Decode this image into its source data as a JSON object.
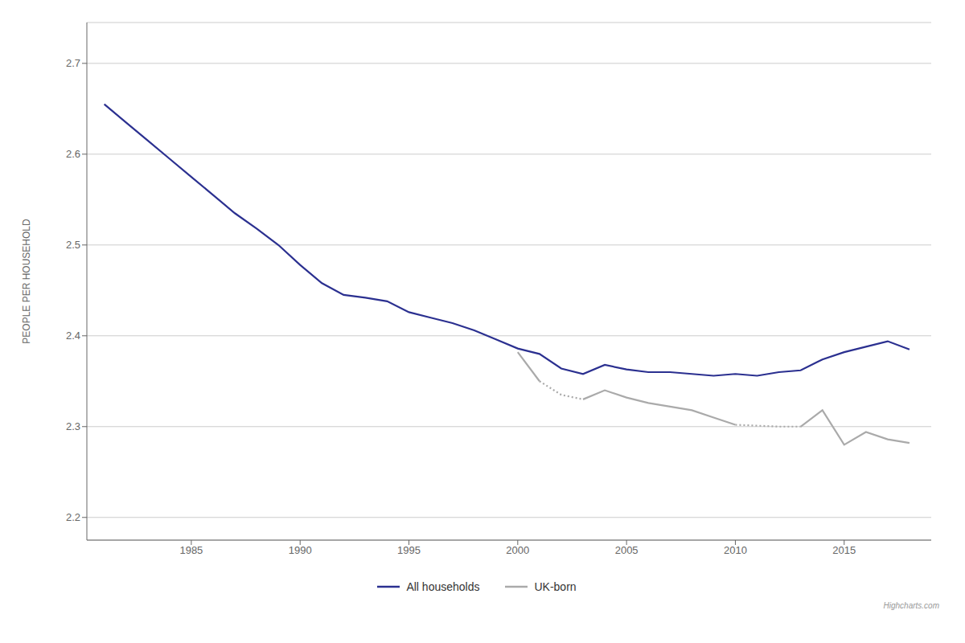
{
  "chart_data": {
    "type": "line",
    "y_label": "PEOPLE PER HOUSEHOLD",
    "annotations": [
      "Highcharts.com"
    ],
    "x": [
      1981,
      1982,
      1983,
      1984,
      1985,
      1986,
      1987,
      1988,
      1989,
      1990,
      1991,
      1992,
      1993,
      1994,
      1995,
      1996,
      1997,
      1998,
      1999,
      2000,
      2001,
      2002,
      2003,
      2004,
      2005,
      2006,
      2007,
      2008,
      2009,
      2010,
      2011,
      2012,
      2013,
      2014,
      2015,
      2016,
      2017,
      2018
    ],
    "series": [
      {
        "name": "All households",
        "color": "#2b3090",
        "line_style": "solid",
        "values": [
          2.655,
          2.635,
          2.615,
          2.595,
          2.575,
          2.555,
          2.535,
          2.518,
          2.5,
          2.478,
          2.458,
          2.445,
          2.442,
          2.438,
          2.426,
          2.42,
          2.414,
          2.406,
          2.396,
          2.386,
          2.38,
          2.364,
          2.358,
          2.368,
          2.363,
          2.36,
          2.36,
          2.358,
          2.356,
          2.358,
          2.356,
          2.36,
          2.362,
          2.374,
          2.382,
          2.388,
          2.394,
          2.385
        ]
      },
      {
        "name": "UK-born",
        "color": "#aaaaaa",
        "line_style": "solid",
        "values": [
          null,
          null,
          null,
          null,
          null,
          null,
          null,
          null,
          null,
          null,
          null,
          null,
          null,
          null,
          null,
          null,
          null,
          null,
          null,
          2.382,
          2.35,
          null,
          null,
          null,
          null,
          null,
          null,
          null,
          null,
          null,
          null,
          null,
          null,
          null,
          null,
          null,
          null,
          null
        ]
      },
      {
        "name": "UK-born",
        "color": "#aaaaaa",
        "line_style": "dotted",
        "values": [
          null,
          null,
          null,
          null,
          null,
          null,
          null,
          null,
          null,
          null,
          null,
          null,
          null,
          null,
          null,
          null,
          null,
          null,
          null,
          null,
          2.35,
          2.335,
          2.33,
          null,
          null,
          null,
          null,
          null,
          null,
          null,
          null,
          null,
          null,
          null,
          null,
          null,
          null,
          null
        ]
      },
      {
        "name": "UK-born",
        "color": "#aaaaaa",
        "line_style": "solid",
        "values": [
          null,
          null,
          null,
          null,
          null,
          null,
          null,
          null,
          null,
          null,
          null,
          null,
          null,
          null,
          null,
          null,
          null,
          null,
          null,
          null,
          null,
          null,
          2.33,
          2.34,
          2.332,
          2.326,
          2.322,
          2.318,
          2.31,
          2.302,
          null,
          null,
          null,
          null,
          null,
          null,
          null,
          null
        ]
      },
      {
        "name": "UK-born",
        "color": "#aaaaaa",
        "line_style": "dotted",
        "values": [
          null,
          null,
          null,
          null,
          null,
          null,
          null,
          null,
          null,
          null,
          null,
          null,
          null,
          null,
          null,
          null,
          null,
          null,
          null,
          null,
          null,
          null,
          null,
          null,
          null,
          null,
          null,
          null,
          null,
          2.302,
          2.301,
          2.3,
          2.3,
          null,
          null,
          null,
          null,
          null
        ]
      },
      {
        "name": "UK-born",
        "color": "#aaaaaa",
        "line_style": "solid",
        "values": [
          null,
          null,
          null,
          null,
          null,
          null,
          null,
          null,
          null,
          null,
          null,
          null,
          null,
          null,
          null,
          null,
          null,
          null,
          null,
          null,
          null,
          null,
          null,
          null,
          null,
          null,
          null,
          null,
          null,
          null,
          null,
          null,
          2.3,
          2.318,
          2.28,
          2.294,
          2.286,
          2.282
        ]
      }
    ],
    "xlim": [
      1980.2,
      2019.0
    ],
    "xticks": [
      1985,
      1990,
      1995,
      2000,
      2005,
      2010,
      2015
    ],
    "ylim": [
      2.175,
      2.745
    ],
    "yticks": [
      2.2,
      2.3,
      2.4,
      2.5,
      2.6,
      2.7
    ],
    "grid": true,
    "legend": "bottom"
  }
}
